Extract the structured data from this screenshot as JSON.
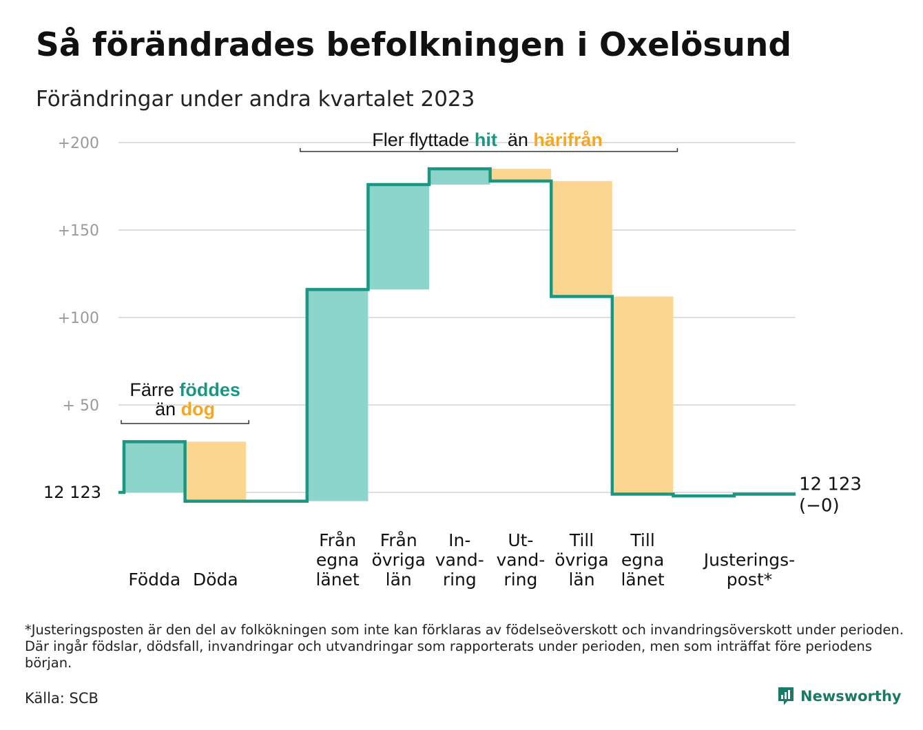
{
  "title": "Så förändrades befolkningen i Oxelösund",
  "subtitle": "Förändringar under andra kvartalet 2023",
  "footnote": "*Justeringsposten är den del av folkökningen som inte kan förklaras av födelseöverskott och invandringsöverskott under perioden. Där ingår födslar, dödsfall, invandringar och utvandringar som rapporterats under perioden, men som inträffat före periodens början.",
  "source": "Källa: SCB",
  "brand": {
    "name": "Newsworthy",
    "icon": "newsworthy-logo-icon"
  },
  "colors": {
    "inflow": "#8dd5cb",
    "outflow": "#fcd690",
    "line": "#1a9683",
    "inflow_text": "#1a9683",
    "outflow_text": "#f5a623",
    "grid": "#dddddd",
    "axis_text": "#9a9a9a"
  },
  "chart_data": {
    "type": "waterfall",
    "base_population": 12123,
    "base_label": "12  123",
    "yticks": [
      {
        "value": 200,
        "label": "+200"
      },
      {
        "value": 150,
        "label": "+150"
      },
      {
        "value": 100,
        "label": "+100"
      },
      {
        "value": 50,
        "label": "+  50"
      }
    ],
    "ylim": [
      -10,
      205
    ],
    "categories": [
      {
        "id": "fodda",
        "lines": [
          "Födda"
        ],
        "delta": 29,
        "kind": "in"
      },
      {
        "id": "doda",
        "lines": [
          "Döda"
        ],
        "delta": -34,
        "kind": "out"
      },
      {
        "id": "gap",
        "lines": [],
        "delta": 0,
        "kind": "gap"
      },
      {
        "id": "fran-egna-lanet",
        "lines": [
          "Från",
          "egna",
          "länet"
        ],
        "delta": 121,
        "kind": "in"
      },
      {
        "id": "fran-ovriga-lan",
        "lines": [
          "Från",
          "övriga",
          "län"
        ],
        "delta": 60,
        "kind": "in"
      },
      {
        "id": "invandring",
        "lines": [
          "In-",
          "vand-",
          "ring"
        ],
        "delta": 9,
        "kind": "in"
      },
      {
        "id": "utvandring",
        "lines": [
          "Ut-",
          "vand-",
          "ring"
        ],
        "delta": -7,
        "kind": "out"
      },
      {
        "id": "till-ovriga-lan",
        "lines": [
          "Till",
          "övriga",
          "län"
        ],
        "delta": -66,
        "kind": "out"
      },
      {
        "id": "till-egna-lanet",
        "lines": [
          "Till",
          "egna",
          "länet"
        ],
        "delta": -113,
        "kind": "out"
      },
      {
        "id": "gap2",
        "lines": [],
        "delta": -1,
        "kind": "gap"
      },
      {
        "id": "justeringspost",
        "lines": [
          "Justerings-",
          "post*"
        ],
        "delta": 1,
        "kind": "adjust"
      }
    ],
    "end_label": {
      "value": "12 123",
      "change": "(−0)"
    },
    "annotations": [
      {
        "id": "births-deaths",
        "text_parts": [
          [
            "Färre ",
            "plain"
          ],
          [
            "föddes",
            "in"
          ]
        ],
        "text_parts2": [
          [
            "än ",
            "plain"
          ],
          [
            "dog",
            "out"
          ]
        ],
        "span": [
          "fodda",
          "doda"
        ]
      },
      {
        "id": "migration",
        "text_parts": [
          [
            "Fler flyttade ",
            "plain"
          ],
          [
            "hit",
            "in"
          ],
          [
            "  än ",
            "plain"
          ],
          [
            "härifrån",
            "out"
          ]
        ],
        "span": [
          "fran-egna-lanet",
          "till-egna-lanet"
        ]
      }
    ]
  }
}
